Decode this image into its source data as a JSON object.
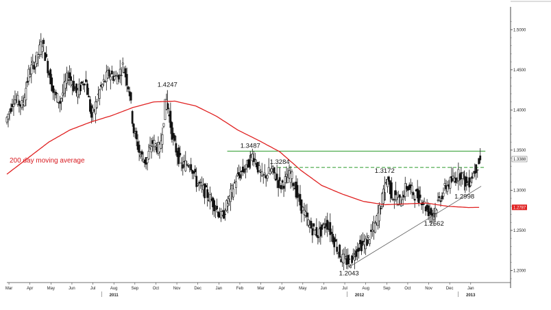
{
  "colors": {
    "candle": "#111111",
    "moving_average": "#e02020",
    "resistance": "#2a9a2a",
    "trendline": "#555555",
    "axis": "#444444",
    "current_tag_bg": "#ffffff",
    "ma_tag_bg": "#e02020"
  },
  "chart_data": {
    "type": "candlestick",
    "title": "",
    "xlabel": "",
    "ylabel": "",
    "ylim": [
      1.185,
      1.525
    ],
    "y_axis_side": "right",
    "grid": false,
    "y_ticks": [
      {
        "value": 1.5,
        "label": "1.5000"
      },
      {
        "value": 1.45,
        "label": "1.4500"
      },
      {
        "value": 1.4,
        "label": "1.4000"
      },
      {
        "value": 1.35,
        "label": "1.3500"
      },
      {
        "value": 1.3,
        "label": "1.3000"
      },
      {
        "value": 1.25,
        "label": "1.2500"
      },
      {
        "value": 1.2,
        "label": "1.2000"
      }
    ],
    "x_range": [
      0,
      24
    ],
    "x_ticks": [
      {
        "value": 0.1,
        "label": "Mar"
      },
      {
        "value": 1.1,
        "label": "Apr"
      },
      {
        "value": 2.1,
        "label": "May"
      },
      {
        "value": 3.1,
        "label": "Jun"
      },
      {
        "value": 4.1,
        "label": "Jul"
      },
      {
        "value": 5.1,
        "label": "Aug"
      },
      {
        "value": 6.1,
        "label": "Sep"
      },
      {
        "value": 7.1,
        "label": "Oct"
      },
      {
        "value": 8.1,
        "label": "Nov"
      },
      {
        "value": 9.1,
        "label": "Dec"
      },
      {
        "value": 10.1,
        "label": "Jan"
      },
      {
        "value": 11.1,
        "label": "Feb"
      },
      {
        "value": 12.1,
        "label": "Mar"
      },
      {
        "value": 13.1,
        "label": "Apr"
      },
      {
        "value": 14.1,
        "label": "May"
      },
      {
        "value": 15.1,
        "label": "Jun"
      },
      {
        "value": 16.1,
        "label": "Jul"
      },
      {
        "value": 17.1,
        "label": "Aug"
      },
      {
        "value": 18.1,
        "label": "Sep"
      },
      {
        "value": 19.1,
        "label": "Oct"
      },
      {
        "value": 20.1,
        "label": "Nov"
      },
      {
        "value": 21.1,
        "label": "Dec"
      },
      {
        "value": 22.1,
        "label": "Jan"
      }
    ],
    "year_labels": [
      {
        "value": 5.1,
        "label": "2011"
      },
      {
        "value": 16.8,
        "label": "2012"
      },
      {
        "value": 22.1,
        "label": "2013"
      }
    ],
    "price_anchors": [
      [
        0.0,
        1.385
      ],
      [
        0.4,
        1.415
      ],
      [
        0.8,
        1.405
      ],
      [
        1.1,
        1.445
      ],
      [
        1.5,
        1.465
      ],
      [
        1.75,
        1.485
      ],
      [
        2.0,
        1.455
      ],
      [
        2.3,
        1.42
      ],
      [
        2.6,
        1.41
      ],
      [
        3.0,
        1.445
      ],
      [
        3.4,
        1.42
      ],
      [
        3.8,
        1.44
      ],
      [
        4.1,
        1.39
      ],
      [
        4.5,
        1.425
      ],
      [
        4.9,
        1.445
      ],
      [
        5.3,
        1.44
      ],
      [
        5.6,
        1.455
      ],
      [
        5.9,
        1.425
      ],
      [
        6.1,
        1.375
      ],
      [
        6.4,
        1.345
      ],
      [
        6.7,
        1.335
      ],
      [
        7.0,
        1.36
      ],
      [
        7.35,
        1.35
      ],
      [
        7.65,
        1.415
      ],
      [
        8.0,
        1.36
      ],
      [
        8.4,
        1.33
      ],
      [
        8.8,
        1.335
      ],
      [
        9.1,
        1.31
      ],
      [
        9.6,
        1.295
      ],
      [
        10.0,
        1.28
      ],
      [
        10.3,
        1.265
      ],
      [
        10.6,
        1.285
      ],
      [
        11.0,
        1.315
      ],
      [
        11.5,
        1.33
      ],
      [
        11.8,
        1.345
      ],
      [
        12.2,
        1.315
      ],
      [
        12.7,
        1.325
      ],
      [
        13.1,
        1.305
      ],
      [
        13.6,
        1.32
      ],
      [
        14.0,
        1.285
      ],
      [
        14.5,
        1.255
      ],
      [
        14.9,
        1.245
      ],
      [
        15.3,
        1.26
      ],
      [
        15.7,
        1.235
      ],
      [
        16.0,
        1.215
      ],
      [
        16.4,
        1.21
      ],
      [
        16.8,
        1.23
      ],
      [
        17.2,
        1.235
      ],
      [
        17.6,
        1.255
      ],
      [
        17.9,
        1.285
      ],
      [
        18.2,
        1.315
      ],
      [
        18.4,
        1.295
      ],
      [
        18.8,
        1.285
      ],
      [
        19.1,
        1.305
      ],
      [
        19.5,
        1.295
      ],
      [
        19.8,
        1.29
      ],
      [
        20.1,
        1.275
      ],
      [
        20.35,
        1.27
      ],
      [
        20.7,
        1.29
      ],
      [
        21.0,
        1.305
      ],
      [
        21.4,
        1.315
      ],
      [
        21.7,
        1.322
      ],
      [
        22.0,
        1.306
      ],
      [
        22.3,
        1.322
      ],
      [
        22.6,
        1.338
      ]
    ],
    "moving_average_anchors": [
      [
        0.0,
        1.32
      ],
      [
        1.0,
        1.34
      ],
      [
        2.0,
        1.36
      ],
      [
        3.0,
        1.375
      ],
      [
        4.0,
        1.385
      ],
      [
        5.0,
        1.393
      ],
      [
        6.0,
        1.403
      ],
      [
        7.0,
        1.41
      ],
      [
        8.0,
        1.411
      ],
      [
        9.0,
        1.405
      ],
      [
        10.0,
        1.392
      ],
      [
        11.0,
        1.375
      ],
      [
        12.0,
        1.362
      ],
      [
        13.0,
        1.348
      ],
      [
        14.0,
        1.325
      ],
      [
        15.0,
        1.306
      ],
      [
        16.0,
        1.295
      ],
      [
        17.0,
        1.286
      ],
      [
        18.0,
        1.282
      ],
      [
        19.0,
        1.283
      ],
      [
        20.0,
        1.284
      ],
      [
        21.0,
        1.28
      ],
      [
        22.0,
        1.2785
      ],
      [
        22.6,
        1.2787
      ]
    ],
    "series": [
      {
        "name": "200 day moving average",
        "type": "line"
      }
    ],
    "levels": [
      {
        "name": "resistance",
        "value": 1.3487,
        "style": "solid",
        "x_start": 10.5,
        "x_end": 22.8
      },
      {
        "name": "resistance",
        "value": 1.3284,
        "style": "dashed",
        "x_start": 12.9,
        "x_end": 22.8
      }
    ],
    "trendline": {
      "start": [
        16.3,
        1.2043
      ],
      "end": [
        22.6,
        1.305
      ]
    },
    "annotations": [
      {
        "label": "1.4247",
        "x": 7.65,
        "y": 1.4247,
        "position": "above"
      },
      {
        "label": "1.3487",
        "x": 11.6,
        "y": 1.3487,
        "position": "above"
      },
      {
        "label": "1.3284",
        "x": 13.0,
        "y": 1.3284,
        "position": "above"
      },
      {
        "label": "1.3172",
        "x": 18.0,
        "y": 1.3172,
        "position": "above"
      },
      {
        "label": "1.2043",
        "x": 16.3,
        "y": 1.2043,
        "position": "below"
      },
      {
        "label": "1.2662",
        "x": 20.35,
        "y": 1.2662,
        "position": "below"
      },
      {
        "label": "1.2998",
        "x": 21.8,
        "y": 1.2998,
        "position": "below"
      }
    ],
    "series_label": "200 day moving average",
    "current_price_tag": {
      "label": "1.3388",
      "value": 1.3388
    },
    "moving_average_tag": {
      "label": "1.2787",
      "value": 1.2787
    }
  }
}
